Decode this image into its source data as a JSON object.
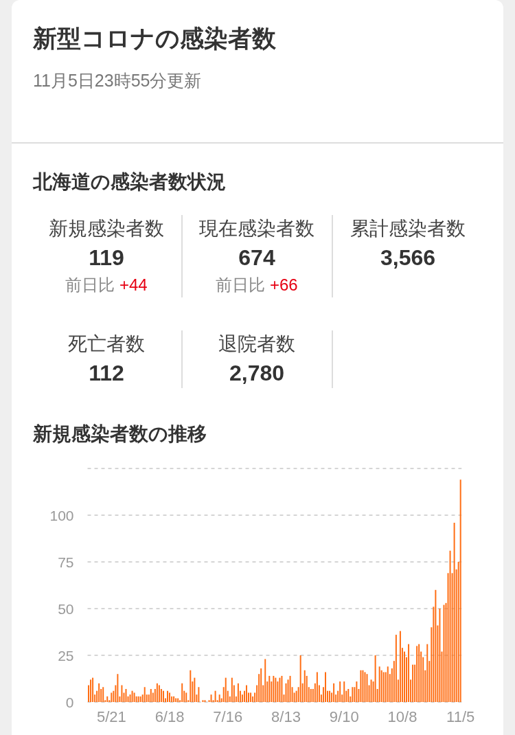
{
  "chart_data": [
    {
      "type": "other",
      "title": "新型コロナの感染者数",
      "subtitle": "11月5日23時55分更新"
    },
    {
      "type": "other",
      "title": "北海道の感染者数状況",
      "categories": [
        "新規感染者数",
        "現在感染者数",
        "累計感染者数",
        "死亡者数",
        "退院者数"
      ],
      "series": [
        {
          "color": "#333333",
          "values": [
            119,
            674,
            3566,
            112,
            2780
          ],
          "value_labels": [
            "119",
            "674",
            "3,566",
            "112",
            "2,780"
          ]
        },
        {
          "color": "#e60012",
          "values": [
            44,
            66,
            null,
            null,
            null
          ],
          "value_labels": [
            "+44",
            "+66",
            null,
            null,
            null
          ]
        }
      ],
      "annotations": [
        {
          "text": "前日比",
          "x": "新規感染者数"
        },
        {
          "text": "前日比",
          "x": "現在感染者数"
        }
      ]
    },
    {
      "type": "bar",
      "title": "新規感染者数の推移",
      "color": "#ff6e14",
      "ylim": [
        0,
        125
      ],
      "yticks": [
        0,
        25,
        50,
        75,
        100,
        {
          "value": 125,
          "label": null
        }
      ],
      "grid": "y",
      "categories": [
        null,
        null,
        null,
        null,
        null,
        null,
        null,
        null,
        null,
        null,
        null,
        "5/21",
        null,
        null,
        null,
        null,
        null,
        null,
        null,
        null,
        null,
        null,
        null,
        null,
        null,
        null,
        null,
        null,
        null,
        null,
        null,
        null,
        null,
        null,
        null,
        null,
        null,
        null,
        null,
        "6/18",
        null,
        null,
        null,
        null,
        null,
        null,
        null,
        null,
        null,
        null,
        null,
        null,
        null,
        null,
        null,
        null,
        null,
        null,
        null,
        null,
        null,
        null,
        null,
        null,
        null,
        null,
        null,
        "7/16",
        null,
        null,
        null,
        null,
        null,
        null,
        null,
        null,
        null,
        null,
        null,
        null,
        null,
        null,
        null,
        null,
        null,
        null,
        null,
        null,
        null,
        null,
        null,
        null,
        null,
        null,
        null,
        "8/13",
        null,
        null,
        null,
        null,
        null,
        null,
        null,
        null,
        null,
        null,
        null,
        null,
        null,
        null,
        null,
        null,
        null,
        null,
        null,
        null,
        null,
        null,
        null,
        null,
        null,
        null,
        null,
        "9/10",
        null,
        null,
        null,
        null,
        null,
        null,
        null,
        null,
        null,
        null,
        null,
        null,
        null,
        null,
        null,
        null,
        null,
        null,
        null,
        null,
        null,
        null,
        null,
        null,
        null,
        null,
        null,
        "10/8",
        null,
        null,
        null,
        null,
        null,
        null,
        null,
        null,
        null,
        null,
        null,
        null,
        null,
        null,
        null,
        null,
        null,
        null,
        null,
        null,
        null,
        null,
        null,
        null,
        null,
        null,
        null,
        "11/5"
      ],
      "values": [
        9,
        12,
        13,
        4,
        6,
        10,
        7,
        8,
        1,
        3,
        1,
        5,
        6,
        9,
        15,
        3,
        9,
        5,
        7,
        3,
        4,
        6,
        5,
        3,
        3,
        3,
        4,
        8,
        4,
        4,
        7,
        5,
        7,
        10,
        9,
        7,
        6,
        2,
        6,
        5,
        3,
        3,
        2,
        2,
        1,
        10,
        6,
        5,
        1,
        17,
        11,
        13,
        4,
        8,
        0,
        1,
        1,
        0,
        1,
        4,
        1,
        6,
        1,
        4,
        2,
        8,
        13,
        6,
        3,
        13,
        9,
        3,
        10,
        6,
        4,
        6,
        9,
        5,
        5,
        3,
        5,
        9,
        15,
        18,
        9,
        23,
        11,
        14,
        11,
        14,
        13,
        11,
        13,
        14,
        4,
        10,
        12,
        14,
        8,
        5,
        6,
        8,
        25,
        10,
        17,
        14,
        8,
        7,
        7,
        10,
        16,
        9,
        4,
        8,
        16,
        6,
        6,
        5,
        10,
        4,
        6,
        11,
        4,
        11,
        6,
        7,
        3,
        8,
        8,
        11,
        7,
        17,
        17,
        16,
        15,
        9,
        12,
        11,
        25,
        7,
        19,
        17,
        16,
        16,
        19,
        15,
        18,
        22,
        36,
        12,
        38,
        29,
        27,
        24,
        31,
        12,
        20,
        20,
        30,
        31,
        27,
        24,
        17,
        31,
        22,
        40,
        51,
        60,
        41,
        50,
        27,
        52,
        53,
        69,
        81,
        69,
        96,
        71,
        75,
        119
      ]
    }
  ]
}
